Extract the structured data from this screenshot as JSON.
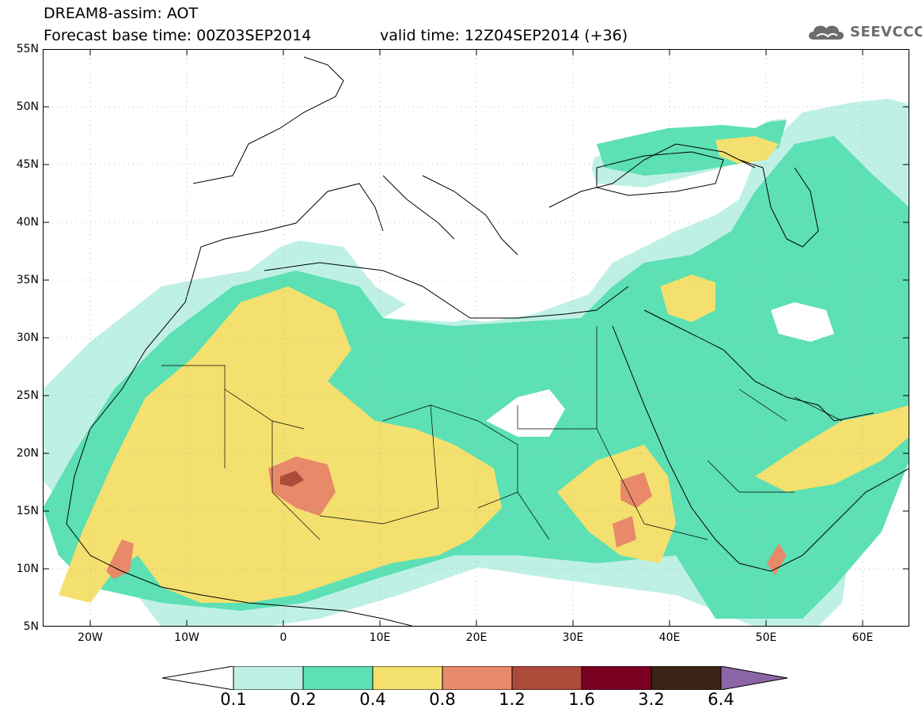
{
  "header": {
    "title": "DREAM8-assim: AOT",
    "base_time": "Forecast base time: 00Z03SEP2014",
    "valid_time": "valid time: 12Z04SEP2014 (+36)",
    "logo_text": "SEEVCCC",
    "logo_icon": "cloud-icon"
  },
  "map": {
    "region": {
      "lon_min": -25,
      "lon_max": 65,
      "lat_min": 5,
      "lat_max": 55
    },
    "lat_labels": [
      "55N",
      "50N",
      "45N",
      "40N",
      "35N",
      "30N",
      "25N",
      "20N",
      "15N",
      "10N",
      "5N"
    ],
    "lon_labels": [
      "20W",
      "10W",
      "0",
      "10E",
      "20E",
      "30E",
      "40E",
      "50E",
      "60E"
    ]
  },
  "colorbar": {
    "labels": [
      "0.1",
      "0.2",
      "0.4",
      "0.8",
      "1.2",
      "1.6",
      "3.2",
      "6.4"
    ],
    "colors": [
      "#ffffff",
      "#bff0e6",
      "#5ce0b4",
      "#f4e06e",
      "#e8896a",
      "#ad4a3a",
      "#7a0022",
      "#3b2416",
      "#8b65a8"
    ]
  }
}
